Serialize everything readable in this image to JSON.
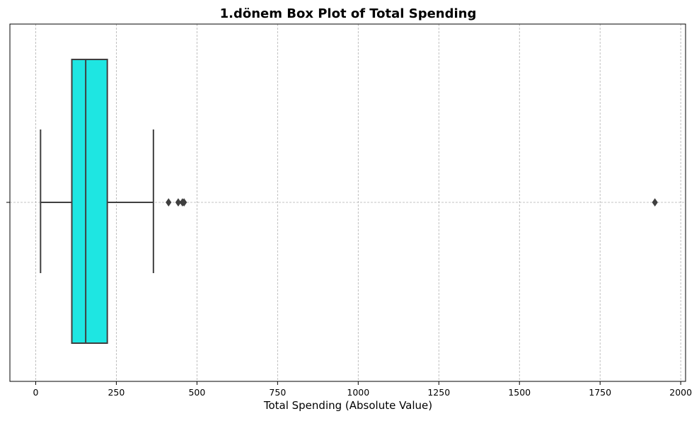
{
  "chart_data": {
    "type": "box",
    "title": "1.dönem Box Plot of Total Spending",
    "xlabel": "Total Spending (Absolute Value)",
    "ylabel": "",
    "xlim": [
      -80,
      2015
    ],
    "x_ticks": [
      0,
      250,
      500,
      750,
      1000,
      1250,
      1500,
      1750,
      2000
    ],
    "x_tick_labels": [
      "0",
      "250",
      "500",
      "750",
      "1000",
      "1250",
      "1500",
      "1750",
      "2000"
    ],
    "grid": true,
    "box": {
      "whisker_low": 15,
      "q1": 112,
      "median": 155,
      "q3": 222,
      "whisker_high": 365,
      "fill_color": "#1ee6e2",
      "edge_color": "#3f3f3f"
    },
    "outliers": [
      412,
      442,
      455,
      460,
      1920
    ]
  }
}
